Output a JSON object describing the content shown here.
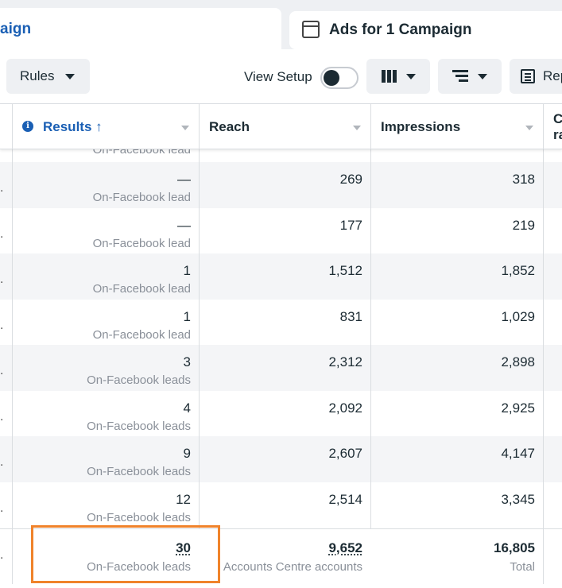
{
  "tabs": {
    "active_label": "aign",
    "inactive_label": "Ads for 1 Campaign"
  },
  "toolbar": {
    "rules_label": "Rules",
    "view_setup_label": "View Setup",
    "reports_label": "Rep"
  },
  "table": {
    "headers": {
      "results": "Results",
      "results_sort_arrow": "↑",
      "reach": "Reach",
      "impressions": "Impressions",
      "next_col_line1": "C",
      "next_col_line2": "ra"
    },
    "partial_row_sub": "On-Facebook lead",
    "rows": [
      {
        "lead": ".",
        "results": "—",
        "results_sub": "On-Facebook lead",
        "reach": "269",
        "impressions": "318"
      },
      {
        "lead": ".",
        "results": "—",
        "results_sub": "On-Facebook lead",
        "reach": "177",
        "impressions": "219"
      },
      {
        "lead": ".",
        "results": "1",
        "results_sub": "On-Facebook lead",
        "reach": "1,512",
        "impressions": "1,852"
      },
      {
        "lead": ".",
        "results": "1",
        "results_sub": "On-Facebook lead",
        "reach": "831",
        "impressions": "1,029"
      },
      {
        "lead": ".",
        "results": "3",
        "results_sub": "On-Facebook leads",
        "reach": "2,312",
        "impressions": "2,898"
      },
      {
        "lead": ".",
        "results": "4",
        "results_sub": "On-Facebook leads",
        "reach": "2,092",
        "impressions": "2,925"
      },
      {
        "lead": ".",
        "results": "9",
        "results_sub": "On-Facebook leads",
        "reach": "2,607",
        "impressions": "4,147"
      },
      {
        "lead": ".",
        "results": "12",
        "results_sub": "On-Facebook leads",
        "reach": "2,514",
        "impressions": "3,345"
      }
    ],
    "total": {
      "lead": ".",
      "results": "30",
      "results_sub": "On-Facebook leads",
      "reach": "9,652",
      "reach_sub": "Accounts Centre accounts",
      "impressions": "16,805",
      "impressions_sub": "Total"
    }
  },
  "colors": {
    "accent_blue": "#1a5fb4",
    "highlight_orange": "#f0832b",
    "row_alt": "#f4f5f7"
  }
}
